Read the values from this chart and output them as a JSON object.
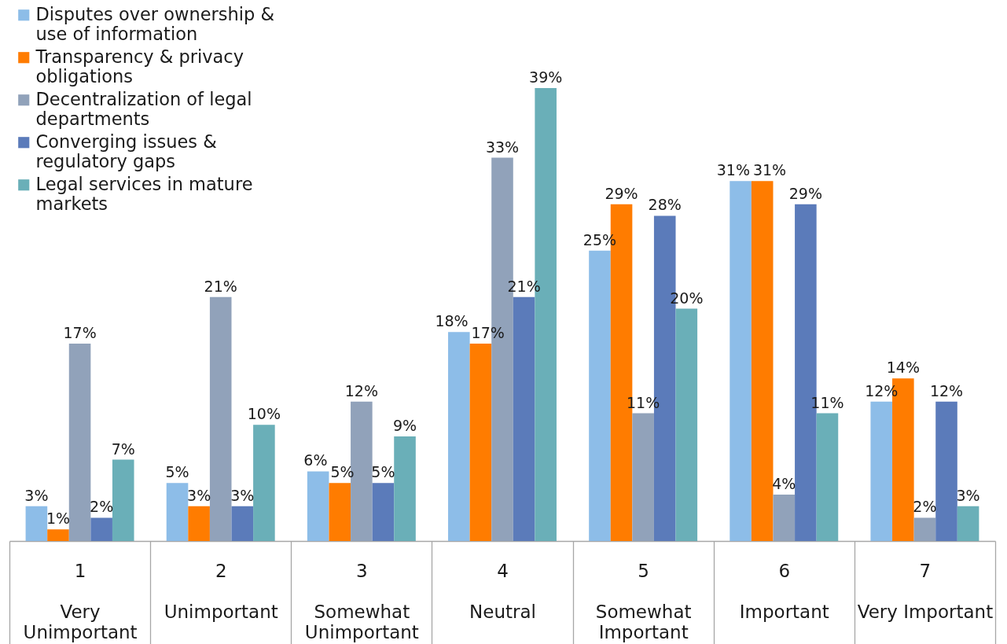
{
  "chart_data": {
    "type": "bar",
    "categories": [
      "1\nVery Unimportant",
      "2\nUnimportant",
      "3\nSomewhat Unimportant",
      "4\nNeutral",
      "5\nSomewhat Important",
      "6\nImportant",
      "7\nVery Important"
    ],
    "series": [
      {
        "name": "Disputes over ownership & use of information",
        "color": "#8dbde8",
        "values": [
          3,
          5,
          6,
          18,
          25,
          31,
          12
        ],
        "value_labels": [
          "3%",
          "5%",
          "6%",
          "18%",
          "25%",
          "31%",
          "12%"
        ]
      },
      {
        "name": "Transparency & privacy obligations",
        "color": "#ff7c00",
        "values": [
          1,
          3,
          5,
          17,
          29,
          31,
          14
        ],
        "value_labels": [
          "1%",
          "3%",
          "5%",
          "17%",
          "29%",
          "31%",
          "14%"
        ]
      },
      {
        "name": "Decentralization of legal departments",
        "color": "#91a2ba",
        "values": [
          17,
          21,
          12,
          33,
          11,
          4,
          2
        ],
        "value_labels": [
          "17%",
          "21%",
          "12%",
          "33%",
          "11%",
          "4%",
          "2%"
        ]
      },
      {
        "name": "Converging issues & regulatory gaps",
        "color": "#5b7bba",
        "values": [
          2,
          3,
          5,
          21,
          28,
          29,
          12
        ],
        "value_labels": [
          "2%",
          "3%",
          "5%",
          "21%",
          "28%",
          "29%",
          "12%"
        ]
      },
      {
        "name": "Legal services in mature markets",
        "color": "#6aafb8",
        "values": [
          7,
          10,
          9,
          39,
          20,
          11,
          3
        ],
        "value_labels": [
          "7%",
          "10%",
          "9%",
          "39%",
          "20%",
          "11%",
          "3%"
        ]
      }
    ],
    "legend": "top left",
    "tick_labels": "x"
  }
}
